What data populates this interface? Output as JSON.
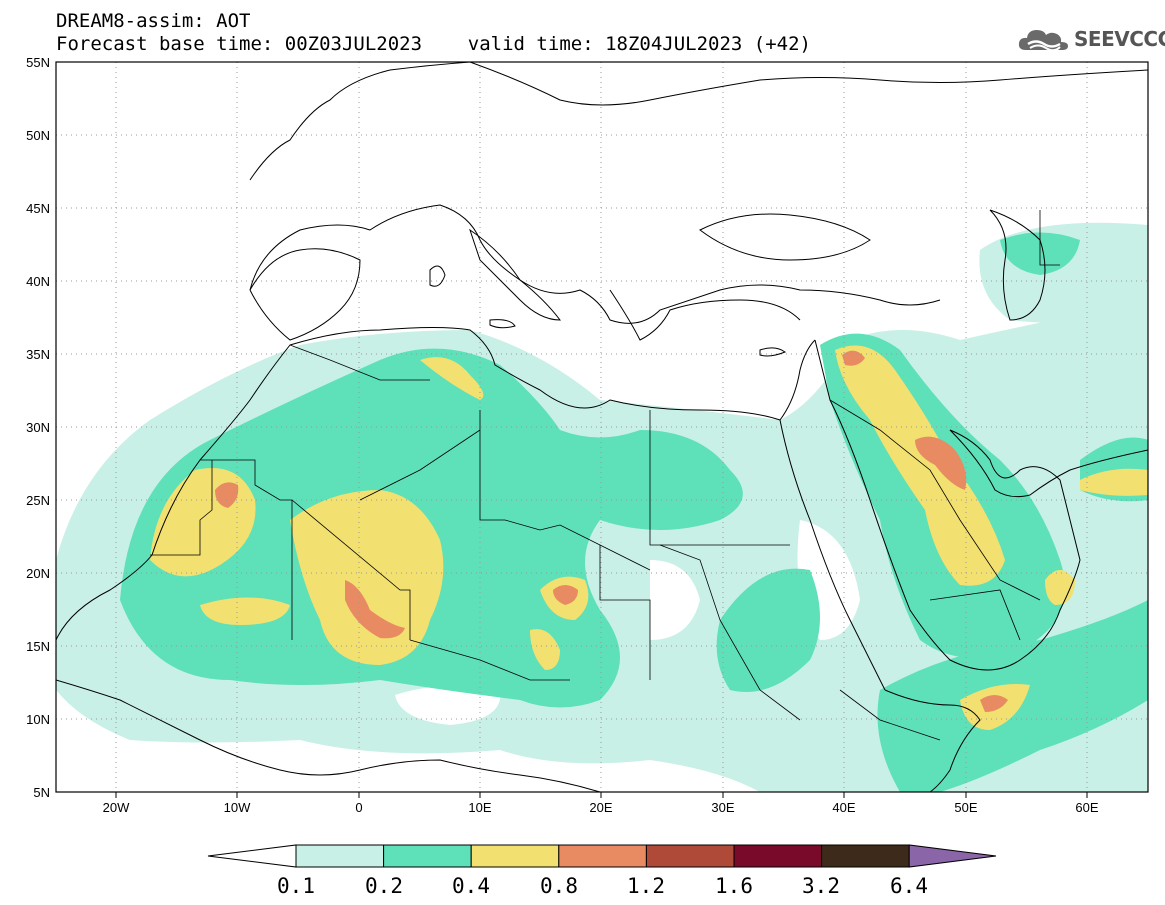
{
  "header": {
    "line1": "DREAM8-assim: AOT",
    "line2": "Forecast base time: 00Z03JUL2023    valid time: 18Z04JUL2023 (+42)"
  },
  "logo": {
    "text": "SEEVCCC",
    "icon": "cloud-icon"
  },
  "map": {
    "lat_labels": [
      "55N",
      "50N",
      "45N",
      "40N",
      "35N",
      "30N",
      "25N",
      "20N",
      "15N",
      "10N",
      "5N"
    ],
    "lon_labels": [
      "20W",
      "10W",
      "0",
      "10E",
      "20E",
      "30E",
      "40E",
      "50E",
      "60E"
    ],
    "lat_range": [
      5,
      55
    ],
    "lon_range": [
      -25,
      65
    ],
    "grid": "dotted"
  },
  "colorbar": {
    "labels": [
      "0.1",
      "0.2",
      "0.4",
      "0.8",
      "1.2",
      "1.6",
      "3.2",
      "6.4"
    ],
    "colors": [
      "#c8f0e6",
      "#5ee0b8",
      "#f2e170",
      "#e88a62",
      "#b04a38",
      "#7a0a2a",
      "#3d2a1a"
    ],
    "under_color": "#ffffff",
    "over_color": "#8a65a8"
  },
  "colors": {
    "lvl1": "#c8f0e6",
    "lvl2": "#5ee0b8",
    "lvl3": "#f2e170",
    "lvl4": "#e88a62",
    "lvl5": "#b04a38"
  }
}
